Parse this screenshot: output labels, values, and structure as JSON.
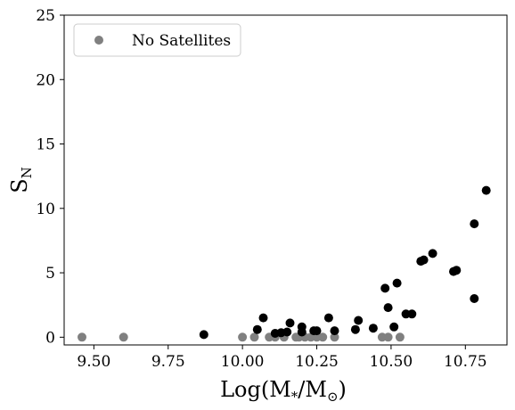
{
  "chart_data": {
    "type": "scatter",
    "xlabel": "Log(M*/M⊙)",
    "ylabel": "SN",
    "xlim": [
      9.4,
      10.89
    ],
    "ylim": [
      -0.6,
      25
    ],
    "xticks": [
      9.5,
      9.75,
      10.0,
      10.25,
      10.5,
      10.75
    ],
    "xtick_labels": [
      "9.50",
      "9.75",
      "10.00",
      "10.25",
      "10.50",
      "10.75"
    ],
    "yticks": [
      0,
      5,
      10,
      15,
      20,
      25
    ],
    "ytick_labels": [
      "0",
      "5",
      "10",
      "15",
      "20",
      "25"
    ],
    "grid": false,
    "legend_position": "top-left",
    "series": [
      {
        "name": "No Satellites",
        "color": "#808080",
        "x": [
          9.46,
          9.6,
          10.0,
          10.04,
          10.09,
          10.11,
          10.14,
          10.18,
          10.19,
          10.21,
          10.23,
          10.25,
          10.27,
          10.31,
          10.47,
          10.49,
          10.53
        ],
        "y": [
          0,
          0,
          0,
          0,
          0,
          0,
          0,
          0,
          0,
          0,
          0,
          0,
          0,
          0,
          0,
          0,
          0
        ]
      },
      {
        "name": "",
        "color": "#000000",
        "x": [
          9.87,
          10.05,
          10.07,
          10.11,
          10.13,
          10.15,
          10.16,
          10.2,
          10.2,
          10.24,
          10.25,
          10.29,
          10.31,
          10.38,
          10.39,
          10.44,
          10.48,
          10.49,
          10.51,
          10.52,
          10.55,
          10.57,
          10.6,
          10.61,
          10.64,
          10.71,
          10.72,
          10.78,
          10.78,
          10.82
        ],
        "y": [
          0.2,
          0.6,
          1.5,
          0.3,
          0.35,
          0.4,
          1.1,
          0.4,
          0.8,
          0.5,
          0.5,
          1.5,
          0.5,
          0.6,
          1.3,
          0.7,
          3.8,
          2.3,
          0.8,
          4.2,
          1.8,
          1.8,
          5.9,
          6.0,
          6.5,
          5.1,
          5.2,
          3.0,
          8.8,
          11.4
        ]
      }
    ]
  }
}
